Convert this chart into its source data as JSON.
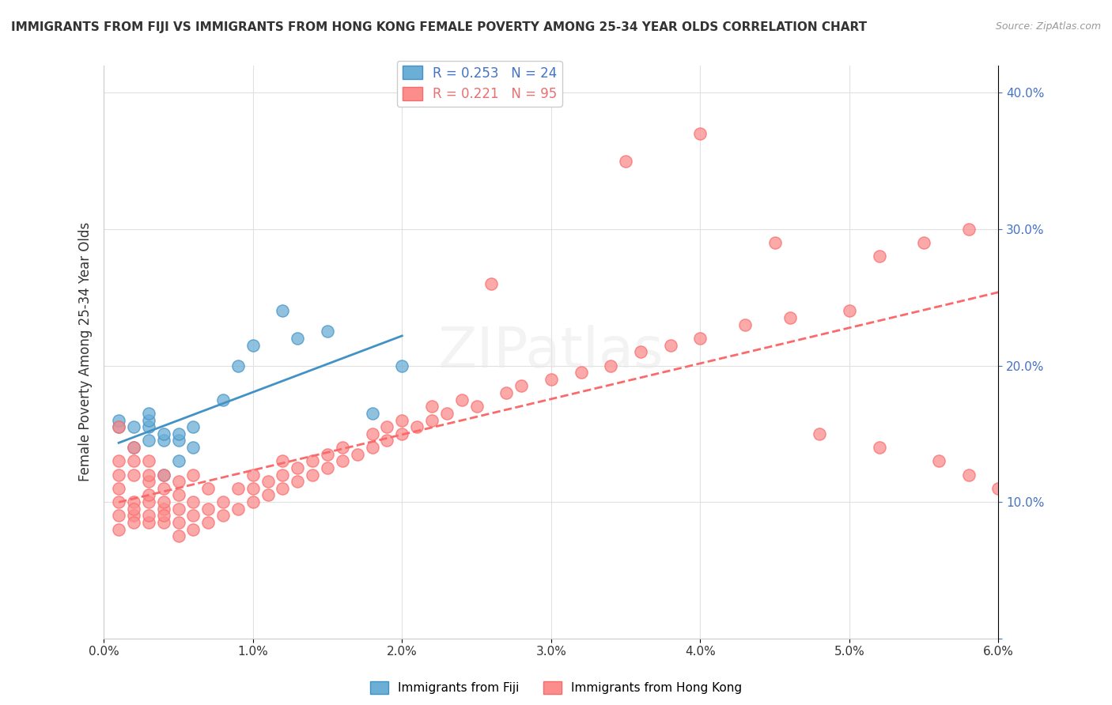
{
  "title": "IMMIGRANTS FROM FIJI VS IMMIGRANTS FROM HONG KONG FEMALE POVERTY AMONG 25-34 YEAR OLDS CORRELATION CHART",
  "source": "Source: ZipAtlas.com",
  "xlabel": "",
  "ylabel": "Female Poverty Among 25-34 Year Olds",
  "xlim": [
    0.0,
    0.06
  ],
  "ylim": [
    0.0,
    0.42
  ],
  "xticks": [
    0.0,
    0.01,
    0.02,
    0.03,
    0.04,
    0.05,
    0.06
  ],
  "xticklabels": [
    "0.0%",
    "1.0%",
    "2.0%",
    "3.0%",
    "4.0%",
    "5.0%",
    "6.0%"
  ],
  "yticks": [
    0.0,
    0.1,
    0.2,
    0.3,
    0.4
  ],
  "yticklabels": [
    "",
    "10.0%",
    "20.0%",
    "30.0%",
    "40.0%"
  ],
  "fiji_color": "#6baed6",
  "fiji_edge": "#4292c6",
  "hk_color": "#fc8d8d",
  "hk_edge": "#fb6a6a",
  "fiji_R": 0.253,
  "fiji_N": 24,
  "hk_R": 0.221,
  "hk_N": 95,
  "fiji_x": [
    0.001,
    0.001,
    0.002,
    0.002,
    0.003,
    0.003,
    0.003,
    0.003,
    0.004,
    0.004,
    0.004,
    0.005,
    0.005,
    0.005,
    0.006,
    0.006,
    0.008,
    0.009,
    0.01,
    0.012,
    0.013,
    0.015,
    0.018,
    0.02
  ],
  "fiji_y": [
    0.155,
    0.16,
    0.14,
    0.155,
    0.145,
    0.155,
    0.16,
    0.165,
    0.12,
    0.145,
    0.15,
    0.13,
    0.145,
    0.15,
    0.14,
    0.155,
    0.175,
    0.2,
    0.215,
    0.24,
    0.22,
    0.225,
    0.165,
    0.2
  ],
  "hk_x": [
    0.001,
    0.001,
    0.001,
    0.001,
    0.001,
    0.001,
    0.001,
    0.002,
    0.002,
    0.002,
    0.002,
    0.002,
    0.002,
    0.002,
    0.003,
    0.003,
    0.003,
    0.003,
    0.003,
    0.003,
    0.003,
    0.004,
    0.004,
    0.004,
    0.004,
    0.004,
    0.004,
    0.005,
    0.005,
    0.005,
    0.005,
    0.005,
    0.006,
    0.006,
    0.006,
    0.006,
    0.007,
    0.007,
    0.007,
    0.008,
    0.008,
    0.009,
    0.009,
    0.01,
    0.01,
    0.01,
    0.011,
    0.011,
    0.012,
    0.012,
    0.012,
    0.013,
    0.013,
    0.014,
    0.014,
    0.015,
    0.015,
    0.016,
    0.016,
    0.017,
    0.018,
    0.018,
    0.019,
    0.019,
    0.02,
    0.02,
    0.021,
    0.022,
    0.022,
    0.023,
    0.024,
    0.025,
    0.026,
    0.027,
    0.028,
    0.03,
    0.032,
    0.034,
    0.036,
    0.038,
    0.04,
    0.043,
    0.046,
    0.05,
    0.052,
    0.055,
    0.058,
    0.035,
    0.04,
    0.045,
    0.048,
    0.052,
    0.056,
    0.058,
    0.06
  ],
  "hk_y": [
    0.155,
    0.1,
    0.09,
    0.08,
    0.11,
    0.12,
    0.13,
    0.1,
    0.09,
    0.085,
    0.095,
    0.13,
    0.14,
    0.12,
    0.085,
    0.09,
    0.1,
    0.105,
    0.115,
    0.12,
    0.13,
    0.095,
    0.085,
    0.09,
    0.1,
    0.11,
    0.12,
    0.075,
    0.085,
    0.095,
    0.105,
    0.115,
    0.08,
    0.09,
    0.1,
    0.12,
    0.085,
    0.095,
    0.11,
    0.09,
    0.1,
    0.095,
    0.11,
    0.1,
    0.11,
    0.12,
    0.105,
    0.115,
    0.11,
    0.12,
    0.13,
    0.115,
    0.125,
    0.12,
    0.13,
    0.125,
    0.135,
    0.13,
    0.14,
    0.135,
    0.14,
    0.15,
    0.145,
    0.155,
    0.15,
    0.16,
    0.155,
    0.16,
    0.17,
    0.165,
    0.175,
    0.17,
    0.26,
    0.18,
    0.185,
    0.19,
    0.195,
    0.2,
    0.21,
    0.215,
    0.22,
    0.23,
    0.235,
    0.24,
    0.28,
    0.29,
    0.3,
    0.35,
    0.37,
    0.29,
    0.15,
    0.14,
    0.13,
    0.12,
    0.11
  ],
  "watermark": "ZIPatlas",
  "background_color": "#ffffff",
  "grid_color": "#e0e0e0"
}
